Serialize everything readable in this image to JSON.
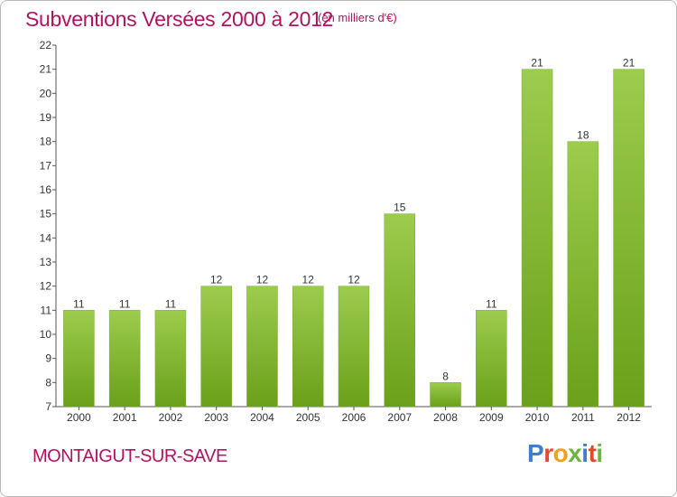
{
  "header": {
    "title": "Subventions Versées 2000 à 2012",
    "subtitle": "(en milliers d'€)"
  },
  "footer": {
    "commune": "MONTAIGUT-SUR-SAVE",
    "logo": "Proxiti"
  },
  "colors": {
    "title": "#b0135f",
    "bar_light": "#9ccc4d",
    "bar_dark": "#6aa01a",
    "axis": "#555555"
  },
  "chart_data": {
    "type": "bar",
    "categories": [
      "2000",
      "2001",
      "2002",
      "2003",
      "2004",
      "2005",
      "2006",
      "2007",
      "2008",
      "2009",
      "2010",
      "2011",
      "2012"
    ],
    "values": [
      11,
      11,
      11,
      12,
      12,
      12,
      12,
      15,
      8,
      11,
      21,
      18,
      21
    ],
    "data_labels": [
      "11",
      "11",
      "11",
      "12",
      "12",
      "12",
      "12",
      "15",
      "8",
      "11",
      "21",
      "18",
      "21"
    ],
    "title": "Subventions Versées 2000 à 2012",
    "ylim": [
      7,
      22
    ],
    "yticks": [
      7,
      8,
      9,
      10,
      11,
      12,
      13,
      14,
      15,
      16,
      17,
      18,
      19,
      20,
      21,
      22
    ],
    "grid": false
  }
}
